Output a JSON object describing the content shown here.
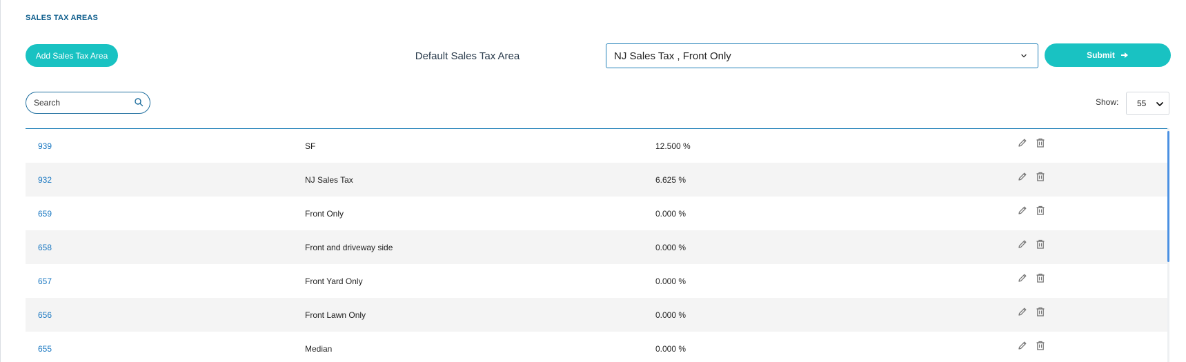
{
  "page": {
    "title": "SALES TAX AREAS"
  },
  "toolbar": {
    "add_label": "Add Sales Tax Area",
    "default_label": "Default Sales Tax Area",
    "default_value": "NJ Sales Tax , Front Only",
    "submit_label": "Submit",
    "submit_icon": "arrow-right-icon"
  },
  "search": {
    "placeholder": "Search",
    "icon": "search-icon"
  },
  "show": {
    "label": "Show:",
    "value": "55"
  },
  "table": {
    "rows": [
      {
        "id": "939",
        "name": "SF",
        "rate": "12.500 %"
      },
      {
        "id": "932",
        "name": "NJ Sales Tax",
        "rate": "6.625 %"
      },
      {
        "id": "659",
        "name": "Front Only",
        "rate": "0.000 %"
      },
      {
        "id": "658",
        "name": "Front and driveway side",
        "rate": "0.000 %"
      },
      {
        "id": "657",
        "name": "Front Yard Only",
        "rate": "0.000 %"
      },
      {
        "id": "656",
        "name": "Front Lawn Only",
        "rate": "0.000 %"
      },
      {
        "id": "655",
        "name": "Median",
        "rate": "0.000 %"
      }
    ],
    "row_actions": [
      "edit-pencil-icon",
      "trash-icon"
    ]
  },
  "colors": {
    "accent": "#19c2c2",
    "link": "#1a78c2",
    "border": "#1f7fb8",
    "title": "#0d5d8c"
  }
}
